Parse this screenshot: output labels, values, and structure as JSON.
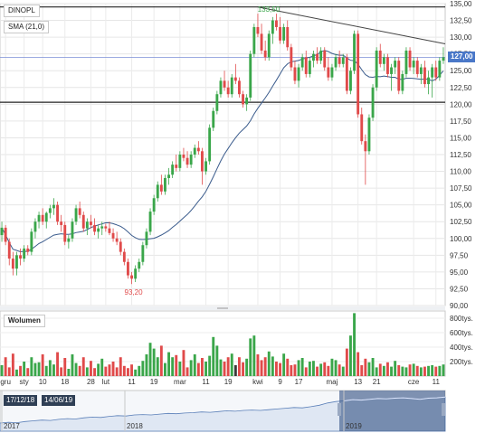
{
  "chart_data": {
    "type": "candlestick",
    "symbol": "DINOPL",
    "indicator_label": "SMA (21,0)",
    "current_price_label": "127,00",
    "current_price": 127.0,
    "max_annotation": {
      "label": "133,50",
      "value": 133.5
    },
    "min_annotation": {
      "label": "93,20",
      "value": 93.2
    },
    "horizontal_levels": [
      134.5,
      120.3
    ],
    "trendline": {
      "from_value": 134.5,
      "to_value": 129.0
    },
    "y_ticks": [
      "135,00",
      "132,50",
      "130,00",
      "127,50",
      "125,00",
      "122,50",
      "120,00",
      "117,50",
      "115,00",
      "112,50",
      "110,00",
      "107,50",
      "105,00",
      "102,50",
      "100,00",
      "97,50",
      "95,00",
      "92,50",
      "90,00"
    ],
    "ylim": [
      90,
      135
    ],
    "x_ticks": [
      {
        "label": "gru",
        "idx": 1
      },
      {
        "label": "sty",
        "idx": 6
      },
      {
        "label": "10",
        "idx": 11
      },
      {
        "label": "18",
        "idx": 17
      },
      {
        "label": "28",
        "idx": 24
      },
      {
        "label": "lut",
        "idx": 28
      },
      {
        "label": "11",
        "idx": 35
      },
      {
        "label": "19",
        "idx": 41
      },
      {
        "label": "mar",
        "idx": 48
      },
      {
        "label": "11",
        "idx": 55
      },
      {
        "label": "19",
        "idx": 61
      },
      {
        "label": "kwi",
        "idx": 69
      },
      {
        "label": "9",
        "idx": 75
      },
      {
        "label": "17",
        "idx": 80
      },
      {
        "label": "maj",
        "idx": 89
      },
      {
        "label": "13",
        "idx": 96
      },
      {
        "label": "21",
        "idx": 101
      },
      {
        "label": "cze",
        "idx": 111
      },
      {
        "label": "11",
        "idx": 117
      }
    ],
    "volume_panel": {
      "title": "Wolumen",
      "y_ticks": [
        "800tys.",
        "600tys.",
        "400tys.",
        "200tys."
      ],
      "ylim": [
        0,
        900
      ]
    },
    "navigator": {
      "date_from": "17/12/18",
      "date_to": "14/06/19",
      "year_labels": [
        "2017",
        "2018",
        "2019"
      ]
    },
    "colors": {
      "up": "#3aa64a",
      "down": "#e04a4a",
      "sma": "#3a5b8c",
      "level": "#222222",
      "trend": "#444444",
      "annot": "#3aa64a"
    },
    "candles": [
      [
        100.5,
        102.5,
        99.5,
        101.6
      ],
      [
        101.6,
        102.0,
        99.0,
        99.5
      ],
      [
        99.5,
        100.0,
        96.0,
        97.0
      ],
      [
        97.0,
        98.0,
        94.5,
        95.5
      ],
      [
        95.5,
        98.0,
        94.5,
        97.5
      ],
      [
        97.5,
        98.5,
        96.0,
        97.0
      ],
      [
        97.0,
        99.0,
        96.5,
        98.5
      ],
      [
        98.5,
        99.0,
        97.5,
        98.0
      ],
      [
        98.0,
        101.5,
        97.5,
        101.0
      ],
      [
        101.0,
        103.0,
        100.0,
        102.5
      ],
      [
        102.5,
        104.0,
        101.5,
        103.5
      ],
      [
        103.5,
        104.5,
        102.0,
        102.5
      ],
      [
        102.5,
        104.0,
        101.5,
        103.8
      ],
      [
        103.8,
        105.0,
        103.0,
        104.5
      ],
      [
        104.5,
        106.0,
        103.5,
        105.0
      ],
      [
        105.0,
        105.5,
        102.0,
        102.5
      ],
      [
        102.5,
        103.5,
        101.0,
        102.0
      ],
      [
        102.0,
        102.5,
        99.0,
        99.5
      ],
      [
        99.5,
        100.5,
        98.5,
        100.0
      ],
      [
        100.0,
        103.0,
        99.5,
        102.5
      ],
      [
        102.5,
        105.0,
        102.0,
        104.5
      ],
      [
        104.5,
        105.5,
        103.0,
        103.5
      ],
      [
        103.5,
        104.0,
        101.0,
        101.5
      ],
      [
        101.5,
        103.0,
        100.5,
        102.5
      ],
      [
        102.5,
        103.5,
        101.5,
        102.0
      ],
      [
        102.0,
        103.0,
        100.5,
        101.0
      ],
      [
        101.0,
        102.0,
        100.0,
        101.5
      ],
      [
        101.5,
        102.5,
        100.5,
        101.8
      ],
      [
        101.8,
        102.2,
        101.0,
        101.5
      ],
      [
        101.5,
        102.5,
        100.5,
        100.8
      ],
      [
        100.8,
        101.5,
        99.5,
        100.0
      ],
      [
        100.0,
        101.0,
        99.0,
        99.5
      ],
      [
        99.5,
        100.0,
        97.5,
        98.0
      ],
      [
        98.0,
        98.5,
        96.0,
        96.5
      ],
      [
        96.5,
        97.0,
        94.0,
        94.5
      ],
      [
        94.5,
        95.0,
        93.2,
        94.0
      ],
      [
        94.0,
        96.0,
        93.5,
        95.5
      ],
      [
        95.5,
        97.0,
        95.0,
        96.5
      ],
      [
        96.5,
        99.5,
        96.0,
        99.0
      ],
      [
        99.0,
        101.5,
        98.5,
        101.0
      ],
      [
        101.0,
        104.5,
        100.5,
        104.0
      ],
      [
        104.0,
        106.5,
        103.5,
        106.0
      ],
      [
        106.0,
        108.5,
        105.5,
        108.0
      ],
      [
        108.0,
        109.5,
        106.5,
        107.0
      ],
      [
        107.0,
        109.5,
        106.5,
        109.0
      ],
      [
        109.0,
        110.5,
        108.0,
        109.5
      ],
      [
        109.5,
        111.5,
        109.0,
        111.0
      ],
      [
        111.0,
        112.5,
        110.0,
        110.5
      ],
      [
        110.5,
        113.0,
        110.0,
        112.5
      ],
      [
        112.5,
        113.5,
        111.5,
        112.0
      ],
      [
        112.0,
        113.0,
        110.5,
        111.0
      ],
      [
        111.0,
        113.0,
        110.5,
        112.5
      ],
      [
        112.5,
        114.0,
        112.0,
        113.5
      ],
      [
        113.5,
        114.5,
        112.5,
        113.0
      ],
      [
        113.0,
        113.5,
        108.0,
        110.0
      ],
      [
        110.0,
        112.0,
        109.5,
        111.5
      ],
      [
        111.5,
        117.0,
        111.0,
        116.5
      ],
      [
        116.5,
        119.5,
        116.0,
        119.0
      ],
      [
        119.0,
        122.0,
        118.5,
        121.5
      ],
      [
        121.5,
        124.0,
        121.0,
        123.5
      ],
      [
        123.5,
        125.0,
        122.0,
        122.5
      ],
      [
        122.5,
        123.5,
        121.0,
        121.5
      ],
      [
        121.5,
        124.5,
        121.0,
        124.0
      ],
      [
        124.0,
        126.0,
        123.0,
        123.5
      ],
      [
        123.5,
        124.0,
        121.0,
        121.5
      ],
      [
        121.5,
        122.0,
        119.5,
        120.0
      ],
      [
        120.0,
        121.5,
        119.0,
        121.0
      ],
      [
        121.0,
        128.0,
        120.5,
        127.5
      ],
      [
        127.5,
        132.0,
        127.0,
        131.5
      ],
      [
        131.5,
        133.5,
        130.0,
        130.5
      ],
      [
        130.5,
        132.0,
        127.5,
        128.0
      ],
      [
        128.0,
        129.5,
        126.5,
        127.0
      ],
      [
        127.0,
        131.0,
        126.5,
        130.5
      ],
      [
        130.5,
        133.0,
        129.0,
        132.5
      ],
      [
        132.5,
        133.5,
        131.0,
        131.5
      ],
      [
        131.5,
        133.0,
        129.0,
        129.5
      ],
      [
        129.5,
        132.0,
        129.0,
        131.5
      ],
      [
        131.5,
        132.5,
        128.0,
        128.5
      ],
      [
        128.5,
        129.0,
        125.0,
        125.5
      ],
      [
        125.5,
        126.5,
        123.0,
        123.5
      ],
      [
        123.5,
        126.0,
        122.5,
        125.5
      ],
      [
        125.5,
        127.5,
        125.0,
        127.0
      ],
      [
        127.0,
        128.0,
        124.0,
        124.5
      ],
      [
        124.5,
        127.0,
        124.0,
        126.5
      ],
      [
        126.5,
        128.0,
        125.5,
        127.5
      ],
      [
        127.5,
        128.5,
        126.0,
        126.5
      ],
      [
        126.5,
        128.5,
        126.0,
        128.0
      ],
      [
        128.0,
        128.5,
        125.0,
        125.5
      ],
      [
        125.5,
        127.0,
        123.5,
        124.0
      ],
      [
        124.0,
        126.0,
        123.5,
        125.5
      ],
      [
        125.5,
        127.5,
        125.0,
        127.0
      ],
      [
        127.0,
        128.0,
        125.5,
        126.0
      ],
      [
        126.0,
        127.5,
        125.5,
        127.0
      ],
      [
        127.0,
        127.5,
        121.5,
        122.0
      ],
      [
        122.0,
        125.5,
        121.5,
        125.0
      ],
      [
        125.0,
        131.0,
        124.5,
        130.5
      ],
      [
        130.5,
        131.0,
        118.0,
        118.5
      ],
      [
        118.5,
        119.5,
        114.0,
        114.5
      ],
      [
        114.5,
        115.5,
        108.0,
        113.0
      ],
      [
        113.0,
        118.5,
        112.5,
        118.0
      ],
      [
        118.0,
        123.0,
        117.5,
        122.5
      ],
      [
        122.5,
        128.5,
        122.0,
        128.0
      ],
      [
        128.0,
        129.0,
        125.5,
        126.0
      ],
      [
        126.0,
        127.5,
        125.0,
        127.0
      ],
      [
        127.0,
        127.5,
        124.0,
        124.5
      ],
      [
        124.5,
        126.0,
        122.0,
        125.5
      ],
      [
        125.5,
        127.0,
        124.5,
        126.5
      ],
      [
        126.5,
        127.0,
        121.5,
        122.0
      ],
      [
        122.0,
        125.0,
        121.5,
        124.5
      ],
      [
        124.5,
        128.5,
        124.0,
        128.0
      ],
      [
        128.0,
        128.5,
        125.0,
        125.5
      ],
      [
        125.5,
        127.0,
        124.5,
        126.5
      ],
      [
        126.5,
        127.0,
        124.0,
        124.5
      ],
      [
        124.5,
        126.0,
        123.0,
        125.5
      ],
      [
        125.5,
        126.5,
        122.5,
        123.0
      ],
      [
        123.0,
        125.0,
        121.5,
        124.0
      ],
      [
        124.0,
        126.0,
        121.0,
        125.5
      ],
      [
        125.5,
        126.5,
        123.5,
        124.0
      ],
      [
        124.0,
        127.0,
        123.5,
        126.5
      ],
      [
        126.5,
        128.5,
        126.0,
        127.0
      ]
    ],
    "volumes": [
      150,
      260,
      120,
      310,
      90,
      140,
      200,
      110,
      260,
      180,
      190,
      300,
      140,
      220,
      160,
      330,
      120,
      250,
      100,
      300,
      180,
      140,
      260,
      120,
      210,
      110,
      170,
      240,
      130,
      160,
      200,
      120,
      260,
      140,
      110,
      160,
      90,
      140,
      210,
      300,
      460,
      380,
      260,
      420,
      180,
      330,
      260,
      290,
      200,
      360,
      120,
      220,
      300,
      180,
      250,
      200,
      280,
      540,
      420,
      230,
      200,
      260,
      310,
      150,
      260,
      190,
      240,
      520,
      560,
      300,
      220,
      260,
      340,
      270,
      200,
      180,
      310,
      240,
      150,
      160,
      220,
      250,
      120,
      200,
      210,
      130,
      170,
      190,
      140,
      240,
      220,
      160,
      130,
      380,
      560,
      870,
      330,
      150,
      240,
      190,
      250,
      120,
      170,
      140,
      190,
      130,
      210,
      150,
      130,
      120,
      160,
      170,
      140,
      120,
      130,
      140,
      150,
      130,
      140,
      160
    ],
    "volume_dark_index": 63,
    "navigator_series": [
      0.22,
      0.24,
      0.23,
      0.26,
      0.28,
      0.3,
      0.29,
      0.32,
      0.34,
      0.33,
      0.36,
      0.38,
      0.37,
      0.4,
      0.42,
      0.41,
      0.44,
      0.45,
      0.44,
      0.46,
      0.48,
      0.47,
      0.49,
      0.5,
      0.52,
      0.51,
      0.53,
      0.55,
      0.54,
      0.56,
      0.57,
      0.56,
      0.58,
      0.6,
      0.62,
      0.64,
      0.63,
      0.66,
      0.7,
      0.76,
      0.8,
      0.82,
      0.85,
      0.84,
      0.86,
      0.88,
      0.87,
      0.89,
      0.9,
      0.88,
      0.86,
      0.89,
      0.9,
      0.92
    ]
  }
}
